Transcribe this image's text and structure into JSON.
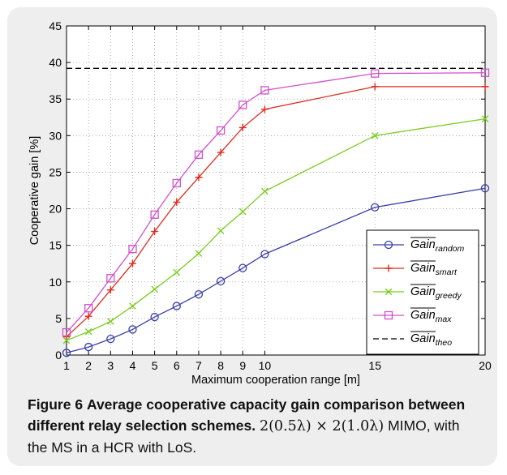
{
  "caption": {
    "label": "Figure 6",
    "title": "Average cooperative capacity gain comparison between different relay selection schemes.",
    "formula": "2(0.5λ) × 2(1.0λ)",
    "rest": "MIMO, with the MS in a HCR with LoS."
  },
  "chart_data": {
    "type": "line",
    "xlabel": "Maximum cooperation range [m]",
    "ylabel": "Cooperative gain [%]",
    "xlim": [
      1,
      20
    ],
    "ylim": [
      0,
      45
    ],
    "x_ticks": [
      "1",
      "2",
      "3",
      "4",
      "5",
      "6",
      "7",
      "8",
      "9",
      "10",
      "15",
      "20"
    ],
    "y_ticks": [
      "0",
      "5",
      "10",
      "15",
      "20",
      "25",
      "30",
      "35",
      "40",
      "45"
    ],
    "grid": true,
    "legend_position": "bottom-right",
    "x": [
      1,
      2,
      3,
      4,
      5,
      6,
      7,
      8,
      9,
      10,
      15,
      20
    ],
    "series": [
      {
        "name": "Gain",
        "sub": "random",
        "color": "#3a3ea8",
        "marker": "circle",
        "values": [
          0.3,
          1.1,
          2.2,
          3.5,
          5.2,
          6.7,
          8.3,
          10.1,
          11.9,
          13.8,
          20.2,
          22.8
        ]
      },
      {
        "name": "Gain",
        "sub": "smart",
        "color": "#e02a1f",
        "marker": "plus",
        "values": [
          2.5,
          5.3,
          8.9,
          12.5,
          16.9,
          20.9,
          24.3,
          27.7,
          31.1,
          33.6,
          36.7,
          36.7
        ]
      },
      {
        "name": "Gain",
        "sub": "greedy",
        "color": "#7ccd1f",
        "marker": "x",
        "values": [
          2.0,
          3.2,
          4.6,
          6.7,
          9.0,
          11.3,
          13.9,
          17.0,
          19.6,
          22.4,
          30.0,
          32.3
        ]
      },
      {
        "name": "Gain",
        "sub": "max",
        "color": "#d24fcb",
        "marker": "square",
        "values": [
          3.1,
          6.4,
          10.5,
          14.5,
          19.2,
          23.5,
          27.4,
          30.7,
          34.2,
          36.2,
          38.5,
          38.6
        ]
      },
      {
        "name": "Gain",
        "sub": "theo",
        "color": "#000000",
        "marker": "none",
        "dashed": true,
        "values": [
          39.2,
          39.2,
          39.2,
          39.2,
          39.2,
          39.2,
          39.2,
          39.2,
          39.2,
          39.2,
          39.2,
          39.2
        ]
      }
    ]
  }
}
